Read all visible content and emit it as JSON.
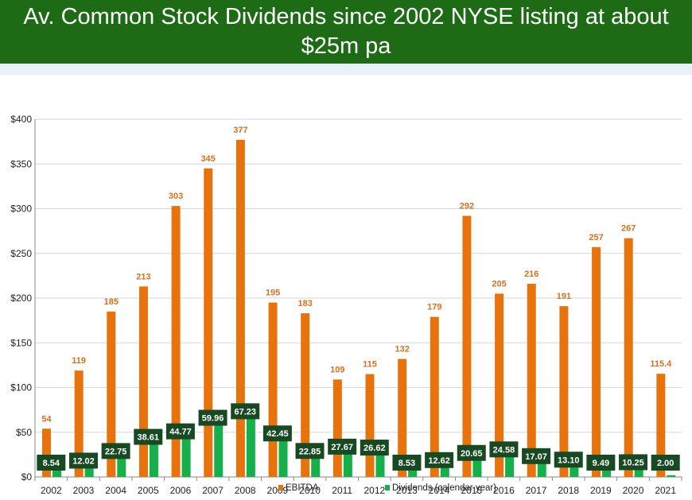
{
  "title": "Av. Common Stock Dividends since 2002 NYSE listing at about $25m pa",
  "colors": {
    "banner": "#1e6b16",
    "ebitda": "#e8720c",
    "dividends": "#16b04a",
    "dividend_label_bg": "#174a22",
    "ebitda_label": "#d8701c"
  },
  "chart_data": {
    "type": "bar",
    "title": "",
    "xlabel": "",
    "ylabel": "",
    "ylim": [
      0,
      400
    ],
    "y_ticks": [
      "$0",
      "$50",
      "$100",
      "$150",
      "$200",
      "$250",
      "$300",
      "$350",
      "$400"
    ],
    "grid": true,
    "legend_position": "bottom",
    "categories": [
      "2002",
      "2003",
      "2004",
      "2005",
      "2006",
      "2007",
      "2008",
      "2009",
      "2010",
      "2011",
      "2012",
      "2013",
      "2014",
      "2015",
      "2016",
      "2017",
      "2018",
      "2019",
      "2020",
      "2021"
    ],
    "series": [
      {
        "name": "EBITDA",
        "color": "#e8720c",
        "values": [
          54,
          119,
          185,
          213,
          303,
          345,
          377,
          195,
          183,
          109,
          115,
          132,
          179,
          292,
          205,
          216,
          191,
          257,
          267,
          115.4
        ],
        "labels": [
          "54",
          "119",
          "185",
          "213",
          "303",
          "345",
          "377",
          "195",
          "183",
          "109",
          "115",
          "132",
          "179",
          "292",
          "205",
          "216",
          "191",
          "257",
          "267",
          "115.4"
        ]
      },
      {
        "name": "Dividends (calendar year)",
        "color": "#16b04a",
        "values": [
          8.54,
          12.02,
          22.75,
          38.61,
          44.77,
          59.96,
          67.23,
          42.45,
          22.85,
          27.67,
          26.62,
          8.53,
          12.62,
          20.65,
          24.58,
          17.07,
          13.1,
          9.49,
          10.25,
          2.0
        ],
        "labels": [
          "8.54",
          "12.02",
          "22.75",
          "38.61",
          "44.77",
          "59.96",
          "67.23",
          "42.45",
          "22.85",
          "27.67",
          "26.62",
          "8.53",
          "12.62",
          "20.65",
          "24.58",
          "17.07",
          "13.10",
          "9.49",
          "10.25",
          "2.00"
        ]
      }
    ]
  }
}
